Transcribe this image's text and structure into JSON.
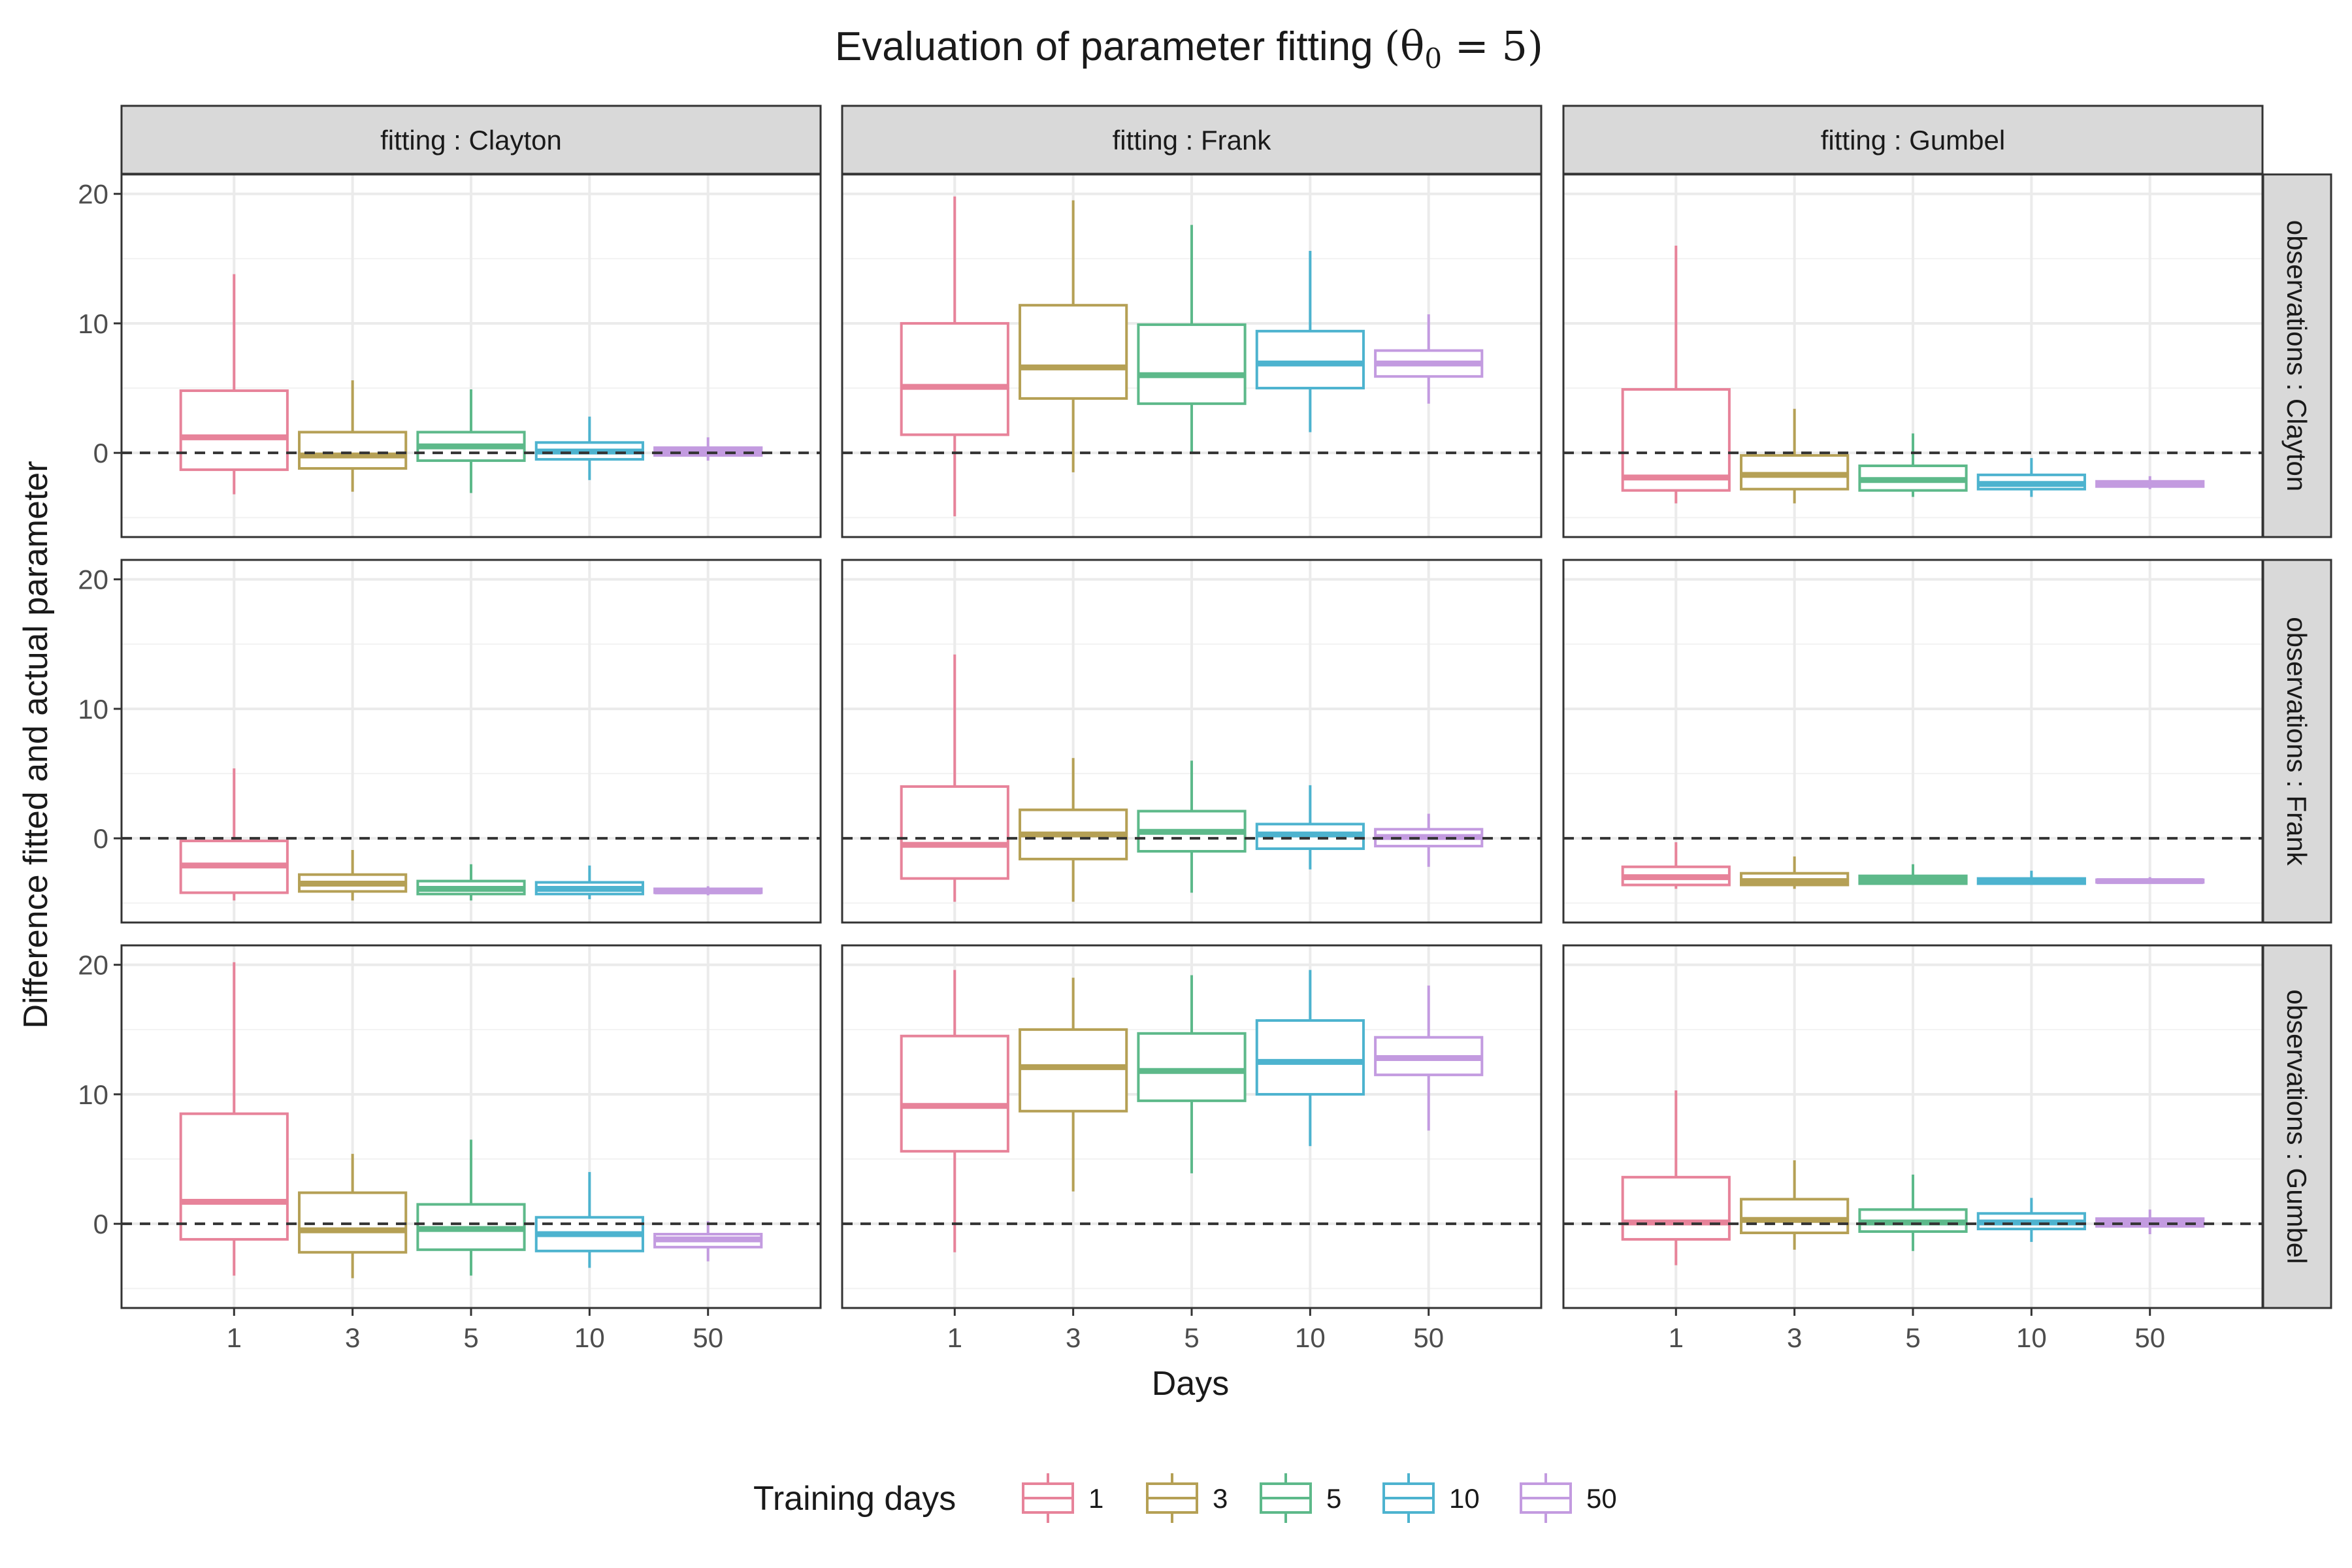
{
  "chart_data": {
    "type": "boxplot",
    "title_prefix": "Evaluation of parameter fitting ",
    "title_math": "(θ",
    "title_sub": "0",
    "title_suffix": " = 5)",
    "xlabel": "Days",
    "ylabel": "Difference fitted and actual parameter",
    "categories": [
      "1",
      "3",
      "5",
      "10",
      "50"
    ],
    "ylim": [
      -6.5,
      21.5
    ],
    "yticks": [
      0,
      10,
      20
    ],
    "reference_line": 0,
    "col_facets": [
      "fitting : Clayton",
      "fitting : Frank",
      "fitting : Gumbel"
    ],
    "row_facets": [
      "observations : Clayton",
      "observations : Frank",
      "observations : Gumbel"
    ],
    "legend": {
      "title": "Training days",
      "position": "bottom",
      "entries": [
        "1",
        "3",
        "5",
        "10",
        "50"
      ]
    },
    "colors": [
      "#E7839A",
      "#B5A055",
      "#5DB98A",
      "#4DB3CF",
      "#C39BE0"
    ],
    "panels": [
      {
        "row": "observations : Clayton",
        "col": "fitting : Clayton",
        "boxes": [
          {
            "min": -3.2,
            "q1": -1.3,
            "median": 1.2,
            "q3": 4.8,
            "max": 13.8
          },
          {
            "min": -3.0,
            "q1": -1.2,
            "median": -0.2,
            "q3": 1.6,
            "max": 5.6
          },
          {
            "min": -3.1,
            "q1": -0.6,
            "median": 0.5,
            "q3": 1.6,
            "max": 4.9
          },
          {
            "min": -2.1,
            "q1": -0.5,
            "median": 0.1,
            "q3": 0.8,
            "max": 2.8
          },
          {
            "min": -0.6,
            "q1": -0.2,
            "median": 0.1,
            "q3": 0.4,
            "max": 1.2
          }
        ]
      },
      {
        "row": "observations : Clayton",
        "col": "fitting : Frank",
        "boxes": [
          {
            "min": -4.9,
            "q1": 1.4,
            "median": 5.1,
            "q3": 10.0,
            "max": 19.8
          },
          {
            "min": -1.5,
            "q1": 4.2,
            "median": 6.6,
            "q3": 11.4,
            "max": 19.5
          },
          {
            "min": 0.0,
            "q1": 3.8,
            "median": 6.0,
            "q3": 9.9,
            "max": 17.6
          },
          {
            "min": 1.6,
            "q1": 5.0,
            "median": 6.9,
            "q3": 9.4,
            "max": 15.6
          },
          {
            "min": 3.8,
            "q1": 5.9,
            "median": 6.9,
            "q3": 7.9,
            "max": 10.7
          }
        ]
      },
      {
        "row": "observations : Clayton",
        "col": "fitting : Gumbel",
        "boxes": [
          {
            "min": -3.9,
            "q1": -2.9,
            "median": -1.9,
            "q3": 4.9,
            "max": 16.0
          },
          {
            "min": -3.9,
            "q1": -2.8,
            "median": -1.7,
            "q3": -0.2,
            "max": 3.4
          },
          {
            "min": -3.4,
            "q1": -2.9,
            "median": -2.1,
            "q3": -1.0,
            "max": 1.5
          },
          {
            "min": -3.4,
            "q1": -2.8,
            "median": -2.4,
            "q3": -1.7,
            "max": -0.4
          },
          {
            "min": -2.8,
            "q1": -2.6,
            "median": -2.4,
            "q3": -2.2,
            "max": -1.8
          }
        ]
      },
      {
        "row": "observations : Frank",
        "col": "fitting : Clayton",
        "boxes": [
          {
            "min": -4.8,
            "q1": -4.2,
            "median": -2.1,
            "q3": -0.2,
            "max": 5.4
          },
          {
            "min": -4.8,
            "q1": -4.1,
            "median": -3.5,
            "q3": -2.8,
            "max": -0.9
          },
          {
            "min": -4.8,
            "q1": -4.3,
            "median": -3.9,
            "q3": -3.3,
            "max": -2.0
          },
          {
            "min": -4.7,
            "q1": -4.3,
            "median": -3.9,
            "q3": -3.4,
            "max": -2.1
          },
          {
            "min": -4.4,
            "q1": -4.2,
            "median": -4.1,
            "q3": -3.9,
            "max": -3.7
          }
        ]
      },
      {
        "row": "observations : Frank",
        "col": "fitting : Frank",
        "boxes": [
          {
            "min": -4.9,
            "q1": -3.1,
            "median": -0.5,
            "q3": 4.0,
            "max": 14.2
          },
          {
            "min": -4.9,
            "q1": -1.6,
            "median": 0.3,
            "q3": 2.2,
            "max": 6.2
          },
          {
            "min": -4.2,
            "q1": -1.0,
            "median": 0.5,
            "q3": 2.1,
            "max": 6.0
          },
          {
            "min": -2.4,
            "q1": -0.8,
            "median": 0.3,
            "q3": 1.1,
            "max": 4.1
          },
          {
            "min": -2.2,
            "q1": -0.6,
            "median": 0.1,
            "q3": 0.7,
            "max": 1.9
          }
        ]
      },
      {
        "row": "observations : Frank",
        "col": "fitting : Gumbel",
        "boxes": [
          {
            "min": -3.9,
            "q1": -3.6,
            "median": -3.0,
            "q3": -2.2,
            "max": -0.3
          },
          {
            "min": -3.9,
            "q1": -3.6,
            "median": -3.3,
            "q3": -2.7,
            "max": -1.4
          },
          {
            "min": -3.6,
            "q1": -3.5,
            "median": -3.2,
            "q3": -2.9,
            "max": -2.0
          },
          {
            "min": -3.6,
            "q1": -3.5,
            "median": -3.3,
            "q3": -3.1,
            "max": -2.5
          },
          {
            "min": -3.5,
            "q1": -3.4,
            "median": -3.3,
            "q3": -3.2,
            "max": -3.0
          }
        ]
      },
      {
        "row": "observations : Gumbel",
        "col": "fitting : Clayton",
        "boxes": [
          {
            "min": -4.0,
            "q1": -1.2,
            "median": 1.7,
            "q3": 8.5,
            "max": 20.2
          },
          {
            "min": -4.2,
            "q1": -2.2,
            "median": -0.5,
            "q3": 2.4,
            "max": 5.4
          },
          {
            "min": -4.0,
            "q1": -2.0,
            "median": -0.4,
            "q3": 1.5,
            "max": 6.5
          },
          {
            "min": -3.4,
            "q1": -2.1,
            "median": -0.8,
            "q3": 0.5,
            "max": 4.0
          },
          {
            "min": -2.9,
            "q1": -1.8,
            "median": -1.2,
            "q3": -0.8,
            "max": 0.2
          }
        ]
      },
      {
        "row": "observations : Gumbel",
        "col": "fitting : Frank",
        "boxes": [
          {
            "min": -2.2,
            "q1": 5.6,
            "median": 9.1,
            "q3": 14.5,
            "max": 19.6
          },
          {
            "min": 2.5,
            "q1": 8.7,
            "median": 12.1,
            "q3": 15.0,
            "max": 19.0
          },
          {
            "min": 3.9,
            "q1": 9.5,
            "median": 11.8,
            "q3": 14.7,
            "max": 19.2
          },
          {
            "min": 6.0,
            "q1": 10.0,
            "median": 12.5,
            "q3": 15.7,
            "max": 19.6
          },
          {
            "min": 7.2,
            "q1": 11.5,
            "median": 12.8,
            "q3": 14.4,
            "max": 18.4
          }
        ]
      },
      {
        "row": "observations : Gumbel",
        "col": "fitting : Gumbel",
        "boxes": [
          {
            "min": -3.2,
            "q1": -1.2,
            "median": 0.1,
            "q3": 3.6,
            "max": 10.3
          },
          {
            "min": -2.0,
            "q1": -0.7,
            "median": 0.3,
            "q3": 1.9,
            "max": 4.9
          },
          {
            "min": -2.1,
            "q1": -0.6,
            "median": 0.1,
            "q3": 1.1,
            "max": 3.8
          },
          {
            "min": -1.4,
            "q1": -0.4,
            "median": 0.1,
            "q3": 0.8,
            "max": 2.0
          },
          {
            "min": -0.8,
            "q1": -0.2,
            "median": 0.1,
            "q3": 0.4,
            "max": 1.1
          }
        ]
      }
    ]
  }
}
